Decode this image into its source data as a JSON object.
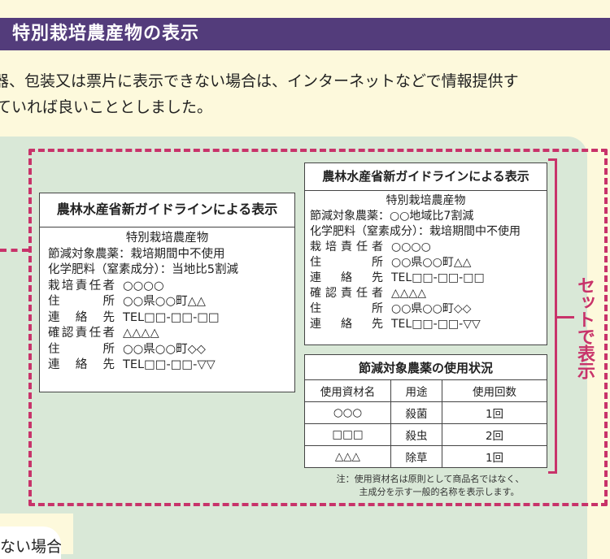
{
  "header": {
    "title": "特別栽培農産物の表示"
  },
  "intro": {
    "lines": [
      "器、包装又は票片に表示できない場合は、インターネットなどで情報提供す",
      "ていれば良いこととしました。"
    ]
  },
  "colors": {
    "header_bg": "#533c7b",
    "accent": "#c8336a",
    "panel_bg": "#d9e8d7",
    "page_bg": "#fdf9dc"
  },
  "label_left": {
    "heading": "農林水産省新ガイドラインによる表示",
    "title": "特別栽培農産物",
    "lines": [
      "節減対象農薬：栽培期間中不使用",
      "化学肥料（窒素成分）：当地比5割減"
    ],
    "rows": [
      {
        "label": "栽培責任者",
        "value": "○○○○"
      },
      {
        "label": "住所",
        "value": "○○県○○町△△"
      },
      {
        "label": "連絡先",
        "value": "TEL□□-□□-□□"
      },
      {
        "label": "確認責任者",
        "value": "△△△△"
      },
      {
        "label": "住所",
        "value": "○○県○○町◇◇"
      },
      {
        "label": "連絡先",
        "value": "TEL□□-□□-▽▽"
      }
    ]
  },
  "label_right": {
    "heading": "農林水産省新ガイドラインによる表示",
    "title": "特別栽培農産物",
    "lines": [
      "節減対象農薬：○○地域比7割減",
      "化学肥料（窒素成分）：栽培期間中不使用"
    ],
    "rows": [
      {
        "label": "栽培責任者",
        "value": "○○○○"
      },
      {
        "label": "住所",
        "value": "○○県○○町△△"
      },
      {
        "label": "連絡先",
        "value": "TEL□□-□□-□□"
      },
      {
        "label": "確認責任者",
        "value": "△△△△"
      },
      {
        "label": "住所",
        "value": "○○県○○町◇◇"
      },
      {
        "label": "連絡先",
        "value": "TEL□□-□□-▽▽"
      }
    ]
  },
  "usage_table": {
    "title": "節減対象農薬の使用状況",
    "columns": [
      "使用資材名",
      "用途",
      "使用回数"
    ],
    "rows": [
      [
        "○○○",
        "殺菌",
        "1回"
      ],
      [
        "□□□",
        "殺虫",
        "2回"
      ],
      [
        "△△△",
        "除草",
        "1回"
      ]
    ],
    "note": [
      "注：使用資材名は原則として商品名ではなく、",
      "主成分を示す一般的名称を表示します。"
    ]
  },
  "set_label": "セットで表示",
  "bottom_card": {
    "text": "ない場合"
  }
}
